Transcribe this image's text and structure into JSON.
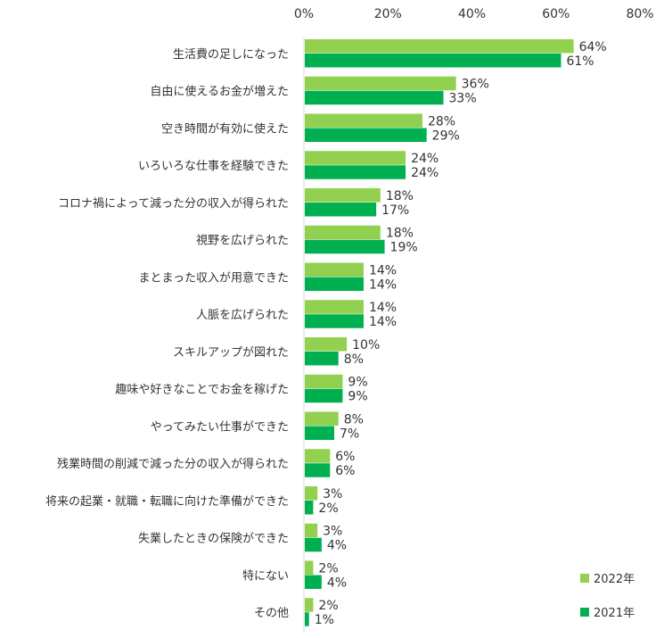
{
  "chart_data": {
    "type": "bar",
    "orientation": "horizontal",
    "title": "",
    "xlabel": "",
    "ylabel": "",
    "xlim": [
      0,
      80
    ],
    "x_ticks": [
      "0%",
      "20%",
      "40%",
      "60%",
      "80%"
    ],
    "x_tick_values": [
      0,
      20,
      40,
      60,
      80
    ],
    "grid": false,
    "legend_position": "bottom-right",
    "value_suffix": "%",
    "categories": [
      "生活費の足しになった",
      "自由に使えるお金が増えた",
      "空き時間が有効に使えた",
      "いろいろな仕事を経験できた",
      "コロナ禍によって減った分の収入が得られた",
      "視野を広げられた",
      "まとまった収入が用意できた",
      "人脈を広げられた",
      "スキルアップが図れた",
      "趣味や好きなことでお金を稼げた",
      "やってみたい仕事ができた",
      "残業時間の削減で減った分の収入が得られた",
      "将来の起業・就職・転職に向けた準備ができた",
      "失業したときの保険ができた",
      "特にない",
      "その他"
    ],
    "series": [
      {
        "name": "2022年",
        "color": "#92d050",
        "values": [
          64,
          36,
          28,
          24,
          18,
          18,
          14,
          14,
          10,
          9,
          8,
          6,
          3,
          3,
          2,
          2
        ]
      },
      {
        "name": "2021年",
        "color": "#00b050",
        "values": [
          61,
          33,
          29,
          24,
          17,
          19,
          14,
          14,
          8,
          9,
          7,
          6,
          2,
          4,
          4,
          1
        ]
      }
    ]
  }
}
